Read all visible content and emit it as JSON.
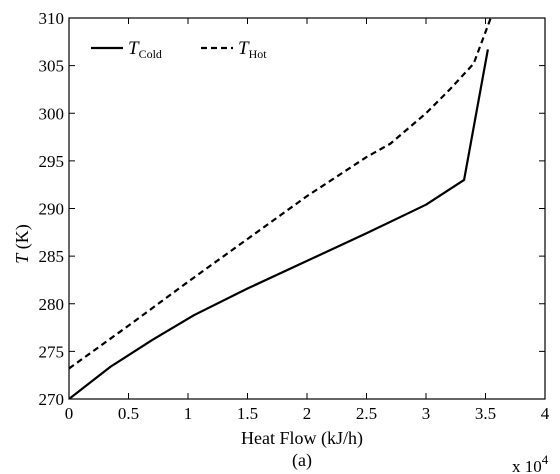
{
  "chart_data": {
    "type": "line",
    "title": "",
    "xlabel": "Heat Flow (kJ/h)",
    "ylabel": {
      "symbol": "T",
      "unit": " (K)"
    },
    "x_multiplier": {
      "prefix": "x 10",
      "exponent": "4"
    },
    "caption": "(a)",
    "xlim": [
      0,
      4
    ],
    "ylim": [
      270,
      310
    ],
    "x_ticks": [
      "0",
      "0.5",
      "1",
      "1.5",
      "2",
      "2.5",
      "3",
      "3.5",
      "4"
    ],
    "y_ticks": [
      "270",
      "275",
      "280",
      "285",
      "290",
      "295",
      "300",
      "305",
      "310"
    ],
    "grid": false,
    "legend_position": "top-left",
    "series": [
      {
        "name": {
          "symbol": "T",
          "subscript": "Cold"
        },
        "line_style": "solid",
        "color": "#000000",
        "x": [
          0,
          0.35,
          0.7,
          1.05,
          1.5,
          2.0,
          2.5,
          3.0,
          3.32,
          3.52
        ],
        "y": [
          270,
          273.4,
          276.2,
          278.8,
          281.6,
          284.5,
          287.4,
          290.4,
          293.0,
          306.7
        ]
      },
      {
        "name": {
          "symbol": "T",
          "subscript": "Hot"
        },
        "line_style": "dashed",
        "color": "#000000",
        "x": [
          0,
          0.5,
          1.0,
          1.5,
          2.0,
          2.5,
          2.7,
          3.0,
          3.2,
          3.4,
          3.55
        ],
        "y": [
          273.2,
          277.7,
          282.3,
          286.8,
          291.3,
          295.4,
          296.8,
          300.0,
          302.5,
          305.2,
          310.2
        ]
      }
    ]
  }
}
